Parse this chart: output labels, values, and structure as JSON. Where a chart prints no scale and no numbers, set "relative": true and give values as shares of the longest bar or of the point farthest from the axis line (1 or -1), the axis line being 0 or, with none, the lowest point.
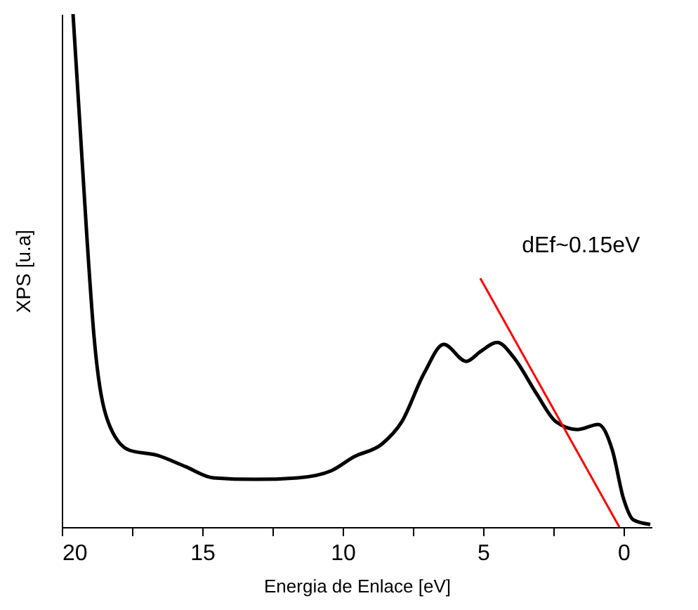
{
  "chart_data": {
    "type": "line",
    "xlabel": "Energia de Enlace [eV]",
    "ylabel": "XPS [u.a]",
    "relative": true,
    "xlim": [
      20,
      -1
    ],
    "xticks": [
      20,
      {
        "value": 17.5,
        "label": null
      },
      15,
      {
        "value": 12.5,
        "label": null
      },
      10,
      {
        "value": 7.5,
        "label": null
      },
      5,
      {
        "value": 2.5,
        "label": null
      },
      0
    ],
    "annotations": [
      "dEf~0.15eV"
    ],
    "grid": false,
    "marker": "none",
    "line_style": "solid",
    "series": [
      {
        "color": "#000000",
        "x": [
          19.6,
          19.35,
          19.1,
          18.85,
          18.35,
          17.6,
          16.6,
          15.6,
          14.6,
          13.1,
          11.6,
          10.4,
          9.6,
          8.6,
          7.9,
          7.1,
          6.4,
          5.6,
          5.1,
          4.5,
          3.9,
          3.1,
          2.4,
          1.65,
          0.9,
          0.4,
          0,
          -0.35,
          -0.95
        ],
        "values": [
          1.0,
          0.78,
          0.56,
          0.37,
          0.205,
          0.15,
          0.14,
          0.118,
          0.096,
          0.093,
          0.096,
          0.11,
          0.137,
          0.162,
          0.205,
          0.3,
          0.356,
          0.323,
          0.342,
          0.36,
          0.33,
          0.26,
          0.205,
          0.19,
          0.2,
          0.15,
          0.055,
          0.014,
          0.005
        ]
      },
      {
        "type": "line",
        "color": "#ff0000",
        "x": [
          5.1,
          0.15
        ],
        "values": [
          0.485,
          0
        ]
      }
    ]
  }
}
